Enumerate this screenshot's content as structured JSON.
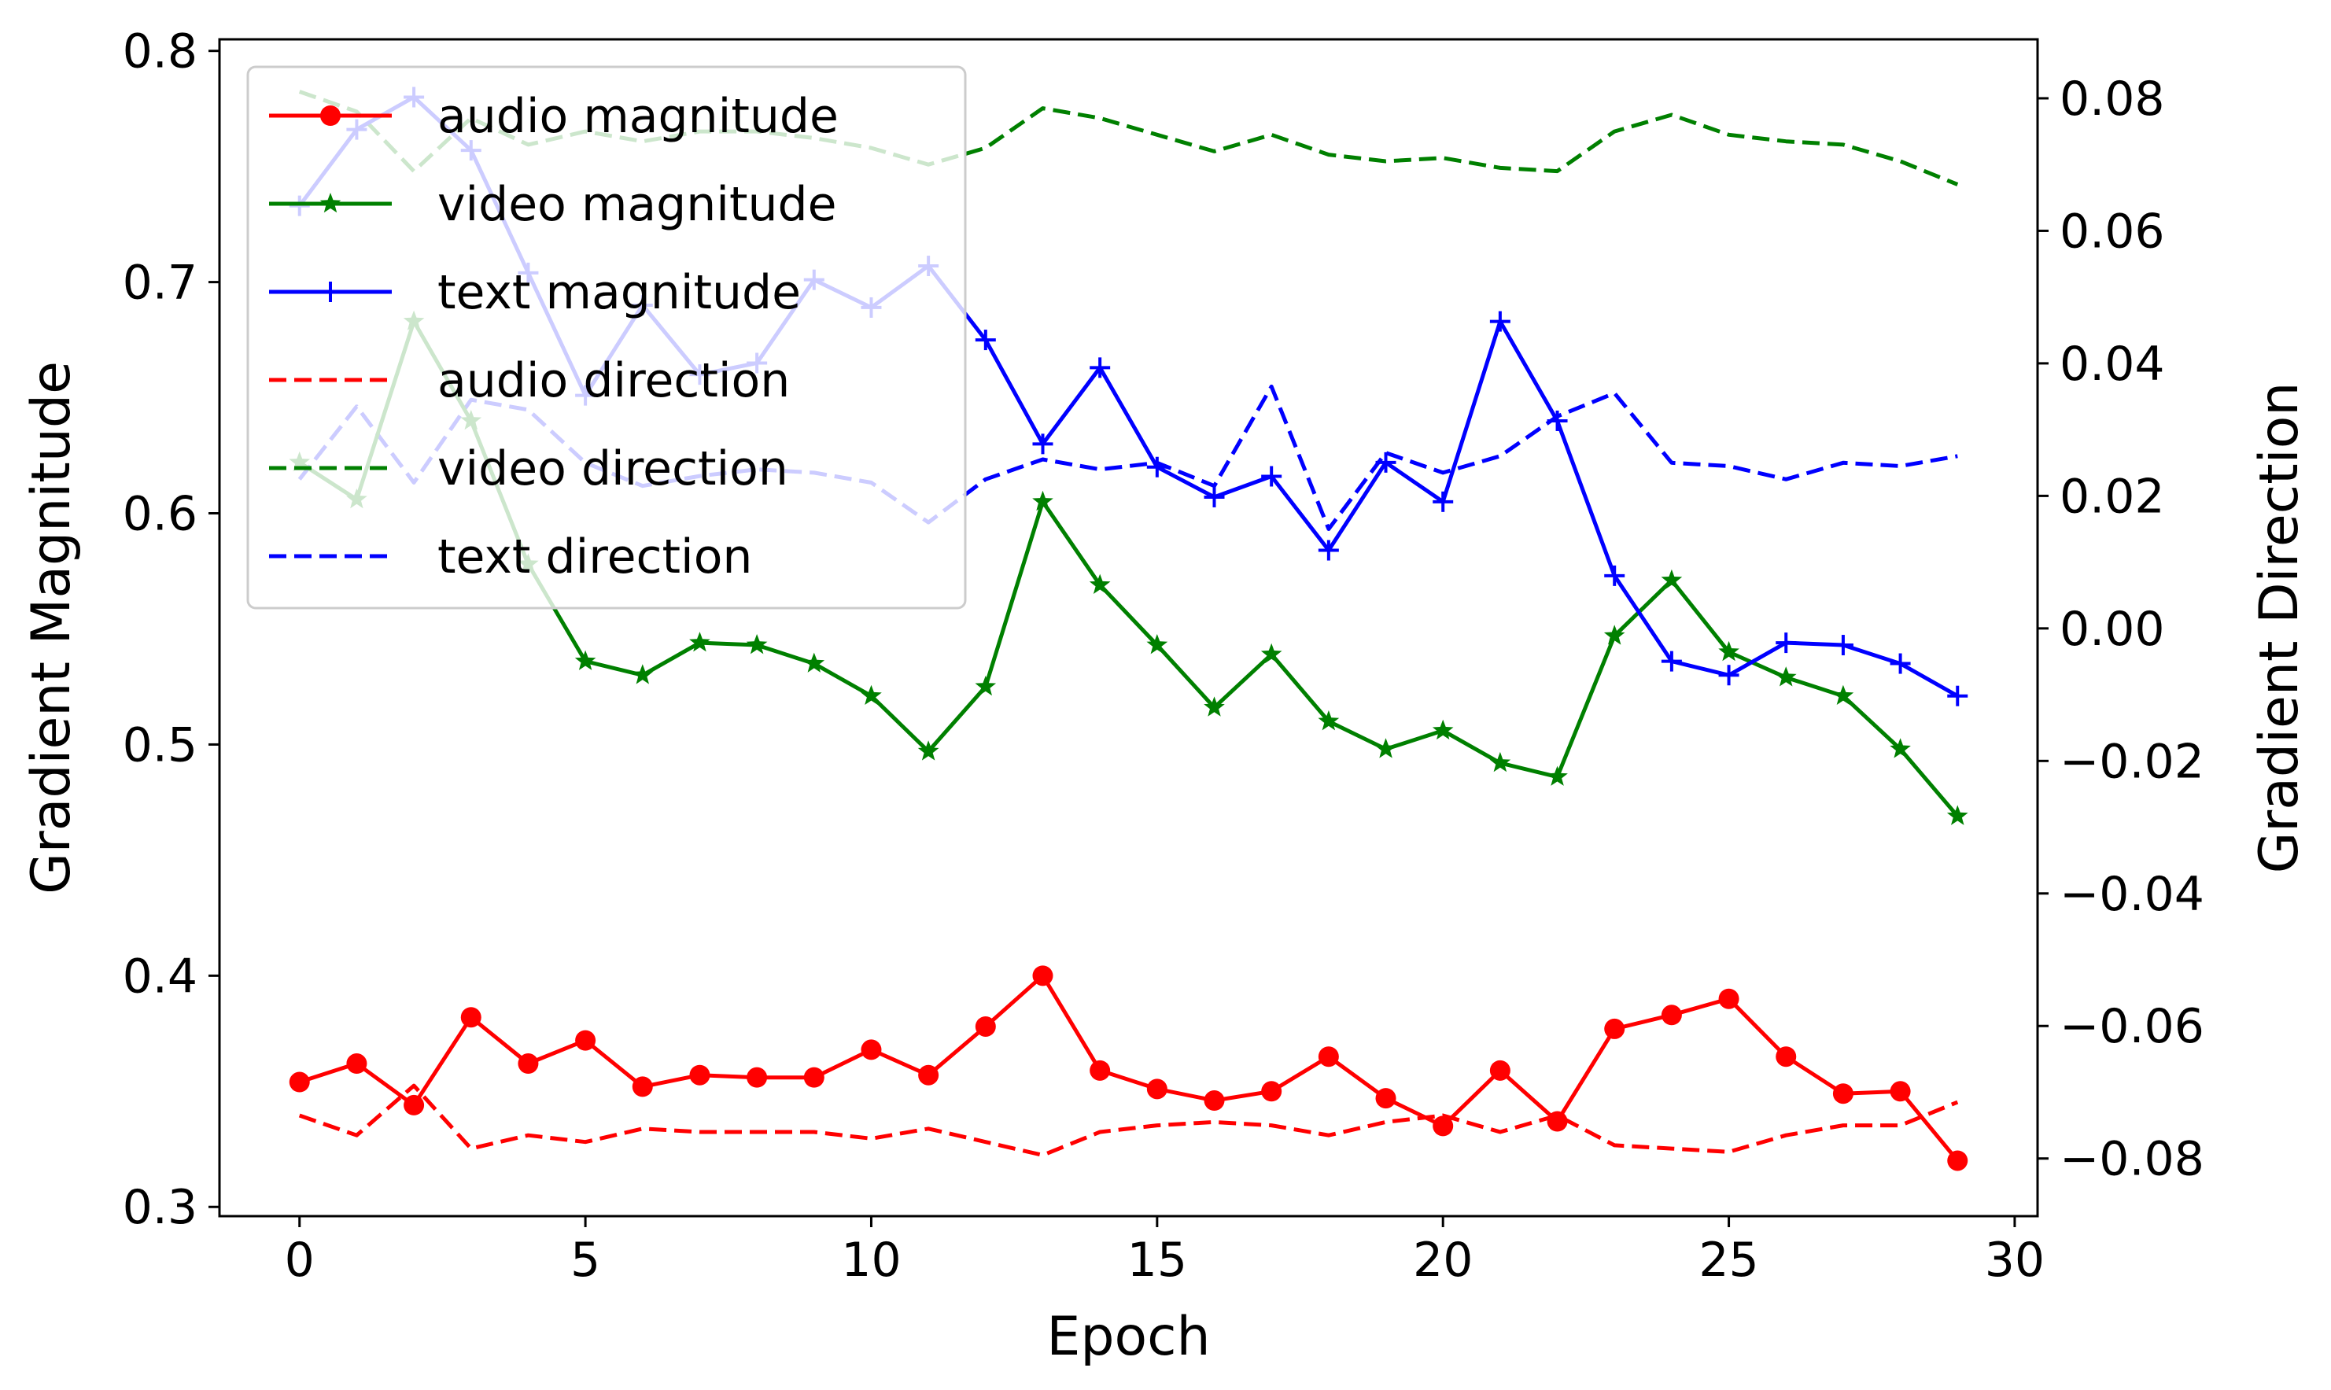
{
  "chart_data": {
    "type": "line",
    "title": "",
    "xlabel": "Epoch",
    "ylabel": "Gradient Magnitude",
    "y2label": "Gradient Direction",
    "xlim": [
      -1.4,
      30.4
    ],
    "ylim": [
      0.296,
      0.805
    ],
    "y2lim": [
      -0.0887,
      0.0889
    ],
    "xticks": [
      "0",
      "5",
      "10",
      "15",
      "20",
      "25",
      "30"
    ],
    "yticks": [
      "0.3",
      "0.4",
      "0.5",
      "0.6",
      "0.7",
      "0.8"
    ],
    "y2ticks": [
      "−0.08",
      "−0.06",
      "−0.04",
      "−0.02",
      "0.00",
      "0.02",
      "0.04",
      "0.06",
      "0.08"
    ],
    "grid": false,
    "legend_position": "top-left",
    "x": [
      0,
      1,
      2,
      3,
      4,
      5,
      6,
      7,
      8,
      9,
      10,
      11,
      12,
      13,
      14,
      15,
      16,
      17,
      18,
      19,
      20,
      21,
      22,
      23,
      24,
      25,
      26,
      27,
      28,
      29
    ],
    "series": [
      {
        "name": "audio magnitude",
        "axis": "left",
        "color": "#ff0000",
        "style": "solid",
        "marker": "circle",
        "values": [
          0.354,
          0.362,
          0.344,
          0.382,
          0.362,
          0.372,
          0.352,
          0.357,
          0.356,
          0.356,
          0.368,
          0.357,
          0.378,
          0.4,
          0.359,
          0.351,
          0.346,
          0.35,
          0.365,
          0.347,
          0.335,
          0.359,
          0.337,
          0.377,
          0.383,
          0.39,
          0.365,
          0.349,
          0.35,
          0.32
        ]
      },
      {
        "name": "video magnitude",
        "axis": "left",
        "color": "#008000",
        "style": "solid",
        "marker": "star",
        "values": [
          0.622,
          0.606,
          0.683,
          0.64,
          0.578,
          0.536,
          0.53,
          0.544,
          0.543,
          0.535,
          0.521,
          0.497,
          0.525,
          0.605,
          0.569,
          0.543,
          0.516,
          0.539,
          0.51,
          0.498,
          0.506,
          0.492,
          0.486,
          0.547,
          0.571,
          0.54,
          0.529,
          0.521,
          0.498,
          0.469
        ]
      },
      {
        "name": "text magnitude",
        "axis": "left",
        "color": "#0000ff",
        "style": "solid",
        "marker": "plus",
        "values": [
          0.733,
          0.766,
          0.78,
          0.757,
          0.704,
          0.651,
          0.69,
          0.66,
          0.665,
          0.701,
          0.689,
          0.707,
          0.675,
          0.63,
          0.663,
          0.62,
          0.607,
          0.616,
          0.584,
          0.622,
          0.605,
          0.683,
          0.64,
          0.573,
          0.536,
          0.53,
          0.544,
          0.543,
          0.535,
          0.521
        ]
      },
      {
        "name": "audio direction",
        "axis": "right",
        "color": "#ff0000",
        "style": "dashed",
        "values": [
          -0.0735,
          -0.0765,
          -0.069,
          -0.0785,
          -0.0765,
          -0.0775,
          -0.0755,
          -0.076,
          -0.076,
          -0.076,
          -0.077,
          -0.0755,
          -0.0775,
          -0.0795,
          -0.076,
          -0.075,
          -0.0745,
          -0.075,
          -0.0765,
          -0.0745,
          -0.0735,
          -0.076,
          -0.0735,
          -0.078,
          -0.0785,
          -0.079,
          -0.0765,
          -0.075,
          -0.075,
          -0.0715
        ]
      },
      {
        "name": "video direction",
        "axis": "right",
        "color": "#008000",
        "style": "dashed",
        "values": [
          0.081,
          0.078,
          0.069,
          0.077,
          0.073,
          0.075,
          0.0735,
          0.075,
          0.075,
          0.074,
          0.0725,
          0.07,
          0.0725,
          0.0785,
          0.077,
          0.0745,
          0.072,
          0.0745,
          0.0715,
          0.0705,
          0.071,
          0.0695,
          0.069,
          0.075,
          0.0775,
          0.0745,
          0.0735,
          0.073,
          0.0705,
          0.067
        ]
      },
      {
        "name": "text direction",
        "axis": "right",
        "color": "#0000ff",
        "style": "dashed",
        "values": [
          0.0225,
          0.0335,
          0.022,
          0.0345,
          0.033,
          0.025,
          0.0215,
          0.023,
          0.024,
          0.0235,
          0.022,
          0.016,
          0.0225,
          0.0255,
          0.024,
          0.025,
          0.0215,
          0.0365,
          0.015,
          0.0265,
          0.0235,
          0.026,
          0.032,
          0.0355,
          0.025,
          0.0245,
          0.0225,
          0.025,
          0.0245,
          0.026
        ]
      }
    ]
  }
}
